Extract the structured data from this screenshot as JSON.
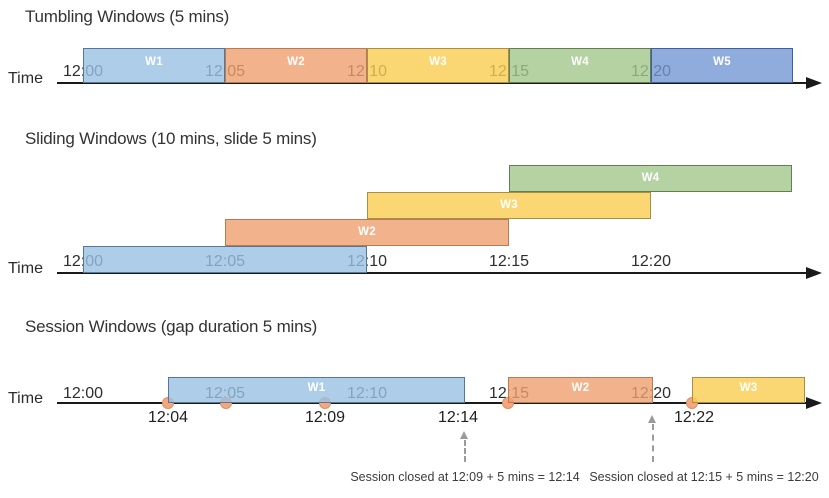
{
  "sections": [
    {
      "title": "Tumbling Windows (5 mins)",
      "axis_label": "Time",
      "ticks": [
        "12:00",
        "12:05",
        "12:10",
        "12:15",
        "12:20"
      ],
      "windows": [
        {
          "label": "W1",
          "start": "12:00",
          "end": "12:05",
          "color": "lightblue"
        },
        {
          "label": "W2",
          "start": "12:05",
          "end": "12:10",
          "color": "orange"
        },
        {
          "label": "W3",
          "start": "12:10",
          "end": "12:15",
          "color": "yellow"
        },
        {
          "label": "W4",
          "start": "12:15",
          "end": "12:20",
          "color": "green"
        },
        {
          "label": "W5",
          "start": "12:20",
          "end": "12:25",
          "color": "blue"
        }
      ]
    },
    {
      "title": "Sliding Windows (10 mins, slide 5 mins)",
      "axis_label": "Time",
      "ticks": [
        "12:00",
        "12:05",
        "12:10",
        "12:15",
        "12:20"
      ],
      "windows": [
        {
          "label": "W1",
          "start": "12:00",
          "end": "12:10",
          "color": "lightblue"
        },
        {
          "label": "W2",
          "start": "12:05",
          "end": "12:15",
          "color": "orange"
        },
        {
          "label": "W3",
          "start": "12:10",
          "end": "12:20",
          "color": "yellow"
        },
        {
          "label": "W4",
          "start": "12:15",
          "end": "12:25",
          "color": "green"
        }
      ]
    },
    {
      "title": "Session Windows (gap duration 5 mins)",
      "axis_label": "Time",
      "ticks": [
        "12:00",
        "12:05",
        "12:10",
        "12:15",
        "12:20"
      ],
      "events": [
        "12:04",
        "12:05",
        "12:09",
        "12:15",
        "12:22"
      ],
      "event_labels": [
        "12:04",
        "12:09",
        "12:14",
        "12:22"
      ],
      "windows": [
        {
          "label": "W1",
          "start": "12:04",
          "end": "12:14",
          "color": "lightblue"
        },
        {
          "label": "W2",
          "start": "12:15",
          "end": "12:20",
          "color": "orange"
        },
        {
          "label": "W3",
          "start": "12:22",
          "end": "",
          "color": "yellow"
        }
      ],
      "annotations": [
        "Session closed at 12:09 + 5 mins = 12:14",
        "Session closed at 12:15 + 5 mins = 12:20"
      ]
    }
  ],
  "colors": {
    "lightblue": {
      "fill": "#AECDE8",
      "border": "#55779F"
    },
    "orange": {
      "fill": "#F2B28C",
      "border": "#BA7A52"
    },
    "yellow": {
      "fill": "#FBD773",
      "border": "#A98F45"
    },
    "green": {
      "fill": "#B5D3A2",
      "border": "#667F52"
    },
    "blue": {
      "fill": "#90ACDC",
      "border": "#3F5E9E"
    },
    "event_dot": {
      "fill": "#F4A67E",
      "border": "#DE8F63"
    },
    "axis": "#1A1A1A",
    "annotation_arrow": "#9A9A9A"
  }
}
